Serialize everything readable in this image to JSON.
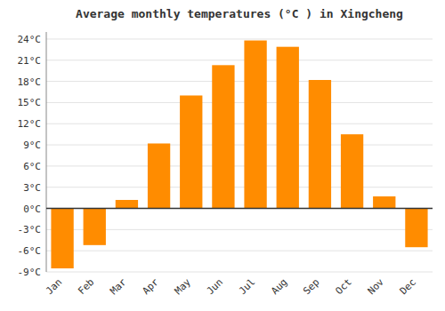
{
  "chart_data": {
    "type": "bar",
    "title": "Average monthly temperatures (°C ) in Xingcheng",
    "categories": [
      "Jan",
      "Feb",
      "Mar",
      "Apr",
      "May",
      "Jun",
      "Jul",
      "Aug",
      "Sep",
      "Oct",
      "Nov",
      "Dec"
    ],
    "values": [
      -8.5,
      -5.2,
      1.2,
      9.2,
      16.0,
      20.3,
      23.8,
      22.9,
      18.2,
      10.5,
      1.7,
      -5.5
    ],
    "color": "#FF8C00",
    "ylim": [
      -9,
      25
    ],
    "yticks": [
      {
        "value": -9,
        "label": "-9°C"
      },
      {
        "value": -6,
        "label": "-6°C"
      },
      {
        "value": -3,
        "label": "-3°C"
      },
      {
        "value": 0,
        "label": "0°C"
      },
      {
        "value": 3,
        "label": "3°C"
      },
      {
        "value": 6,
        "label": "6°C"
      },
      {
        "value": 9,
        "label": "9°C"
      },
      {
        "value": 12,
        "label": "12°C"
      },
      {
        "value": 15,
        "label": "15°C"
      },
      {
        "value": 18,
        "label": "18°C"
      },
      {
        "value": 21,
        "label": "21°C"
      },
      {
        "value": 24,
        "label": "24°C"
      }
    ],
    "grid": true
  }
}
